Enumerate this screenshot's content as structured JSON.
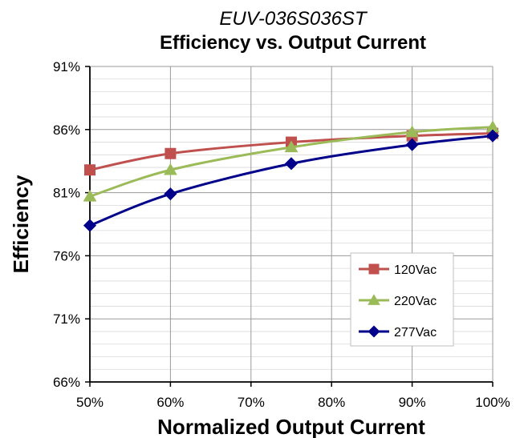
{
  "chart_data": {
    "type": "line",
    "title": "Efficiency vs. Output Current",
    "subtitle": "EUV-036S036ST",
    "xlabel": "Normalized Output Current",
    "ylabel": "Efficiency",
    "x": [
      50,
      60,
      75,
      90,
      100
    ],
    "xlim": [
      50,
      100
    ],
    "ylim": [
      66,
      91
    ],
    "x_ticks": [
      "50%",
      "60%",
      "70%",
      "80%",
      "90%",
      "100%"
    ],
    "y_ticks": [
      "91%",
      "86%",
      "81%",
      "76%",
      "71%",
      "66%"
    ],
    "grid": true,
    "legend_position": "bottom-right",
    "series": [
      {
        "name": "120Vac",
        "color": "#c0504d",
        "marker": "square",
        "values": [
          82.8,
          84.1,
          85.0,
          85.5,
          85.7
        ]
      },
      {
        "name": "220Vac",
        "color": "#9bbb59",
        "marker": "triangle",
        "values": [
          80.7,
          82.8,
          84.6,
          85.8,
          86.2
        ]
      },
      {
        "name": "277Vac",
        "color": "#00008b",
        "marker": "diamond",
        "values": [
          78.4,
          80.9,
          83.3,
          84.8,
          85.5
        ]
      }
    ]
  }
}
